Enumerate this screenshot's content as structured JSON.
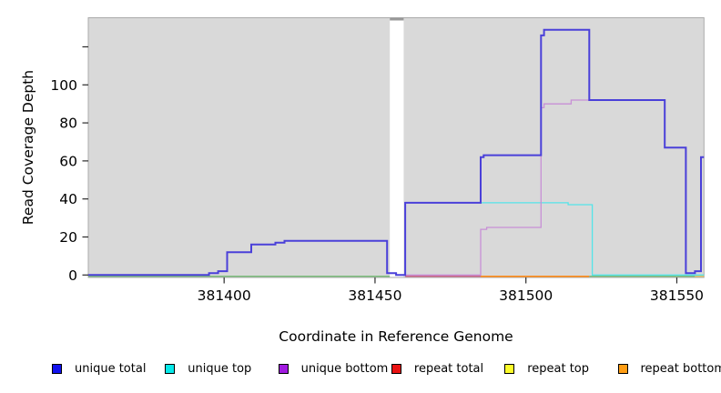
{
  "figure": {
    "background": "#ffffff",
    "panel_bg": "#d9d9d9",
    "panel_border": "#aaaaaa",
    "gap_fill": "#ffffff",
    "gap_cap": "#999999",
    "tick_color": "#2a2a2a"
  },
  "chart_data": {
    "type": "line",
    "subtype": "step-coverage",
    "title": "",
    "xlabel": "Coordinate in Reference Genome",
    "ylabel": "Read Coverage Depth",
    "xlim": [
      381355,
      381559
    ],
    "ylim": [
      -1.3,
      135.3
    ],
    "grid": false,
    "legend_position": "bottom",
    "x_ticks": [
      {
        "value": 381400,
        "label": "381400"
      },
      {
        "value": 381450,
        "label": "381450"
      },
      {
        "value": 381500,
        "label": "381500"
      },
      {
        "value": 381550,
        "label": "381550"
      }
    ],
    "y_ticks": [
      {
        "value": 0,
        "label": "0"
      },
      {
        "value": 20,
        "label": "20"
      },
      {
        "value": 40,
        "label": "40"
      },
      {
        "value": 60,
        "label": "60"
      },
      {
        "value": 80,
        "label": "80"
      },
      {
        "value": 100,
        "label": "100"
      },
      {
        "value": 120,
        "label": ""
      }
    ],
    "gap_region": {
      "from": 381454.9,
      "to": 381459.5
    },
    "series": [
      {
        "name": "unique top",
        "color": "#54e4e9",
        "width": 1.3,
        "end": 381559,
        "steps": [
          [
            381460,
            38
          ],
          [
            381514,
            37
          ],
          [
            381522,
            0
          ]
        ]
      },
      {
        "name": "unique bottom",
        "color": "#c890d6",
        "width": 1.3,
        "end": 381559,
        "steps": [
          [
            381460,
            0
          ],
          [
            381485,
            24
          ],
          [
            381487,
            25
          ],
          [
            381505,
            88
          ],
          [
            381506,
            90
          ],
          [
            381515,
            92
          ],
          [
            381521,
            92
          ],
          [
            381546,
            67
          ],
          [
            381553,
            1
          ],
          [
            381556,
            2
          ],
          [
            381558,
            62
          ]
        ]
      },
      {
        "name": "unique total",
        "color": "#4a40d9",
        "width": 2,
        "end": 381559,
        "steps": [
          [
            381355,
            0
          ],
          [
            381395,
            1
          ],
          [
            381398,
            2
          ],
          [
            381401,
            12
          ],
          [
            381409,
            16
          ],
          [
            381417,
            17
          ],
          [
            381420,
            18
          ],
          [
            381454,
            1
          ],
          [
            381457,
            0
          ],
          [
            381460,
            38
          ],
          [
            381485,
            62
          ],
          [
            381486,
            63
          ],
          [
            381505,
            126
          ],
          [
            381506,
            129
          ],
          [
            381521,
            92
          ],
          [
            381546,
            67
          ],
          [
            381553,
            1
          ],
          [
            381556,
            2
          ],
          [
            381558,
            62
          ]
        ]
      }
    ],
    "baseline_segments": [
      {
        "name": "baseline-left",
        "color": "#6cb96c",
        "width": 1.2,
        "from": 381355,
        "to": 381455
      },
      {
        "name": "baseline-crimson",
        "color": "#c8507b",
        "width": 1.3,
        "from": 381460,
        "to": 381485
      },
      {
        "name": "baseline-orange",
        "color": "#ff8c1a",
        "width": 1.6,
        "from": 381485,
        "to": 381521
      },
      {
        "name": "baseline-right-green",
        "color": "#6cb96c",
        "width": 1.2,
        "from": 381521,
        "to": 381556
      },
      {
        "name": "baseline-right-gold",
        "color": "#e2bd52",
        "width": 1.2,
        "from": 381556,
        "to": 381559
      }
    ]
  },
  "legend": {
    "items": [
      {
        "label": "unique total",
        "color": "#1212ee"
      },
      {
        "label": "unique top",
        "color": "#06e9e9"
      },
      {
        "label": "unique bottom",
        "color": "#a11ae0"
      },
      {
        "label": "repeat total",
        "color": "#ea1313"
      },
      {
        "label": "repeat top",
        "color": "#fcfc2a"
      },
      {
        "label": "repeat bottom",
        "color": "#ff9d14"
      }
    ]
  }
}
